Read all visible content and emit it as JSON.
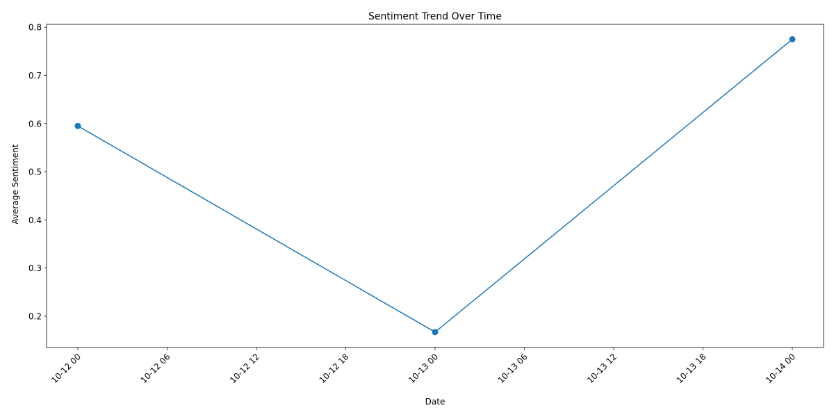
{
  "chart_data": {
    "type": "line",
    "title": "Sentiment Trend Over Time",
    "xlabel": "Date",
    "ylabel": "Average Sentiment",
    "x_tick_labels": [
      "10-12 00",
      "10-12 06",
      "10-12 12",
      "10-12 18",
      "10-13 00",
      "10-13 06",
      "10-13 12",
      "10-13 18",
      "10-14 00"
    ],
    "y_tick_labels": [
      "0.2",
      "0.3",
      "0.4",
      "0.5",
      "0.6",
      "0.7",
      "0.8"
    ],
    "y_ticks": [
      0.2,
      0.3,
      0.4,
      0.5,
      0.6,
      0.7,
      0.8
    ],
    "x": [
      "10-12 00",
      "10-13 00",
      "10-14 00"
    ],
    "series": [
      {
        "values": [
          0.595,
          0.167,
          0.775
        ],
        "color": "#1f77b4",
        "marker": "circle"
      }
    ],
    "ylim": [
      0.135,
      0.806
    ],
    "grid": false,
    "legend": "none"
  }
}
